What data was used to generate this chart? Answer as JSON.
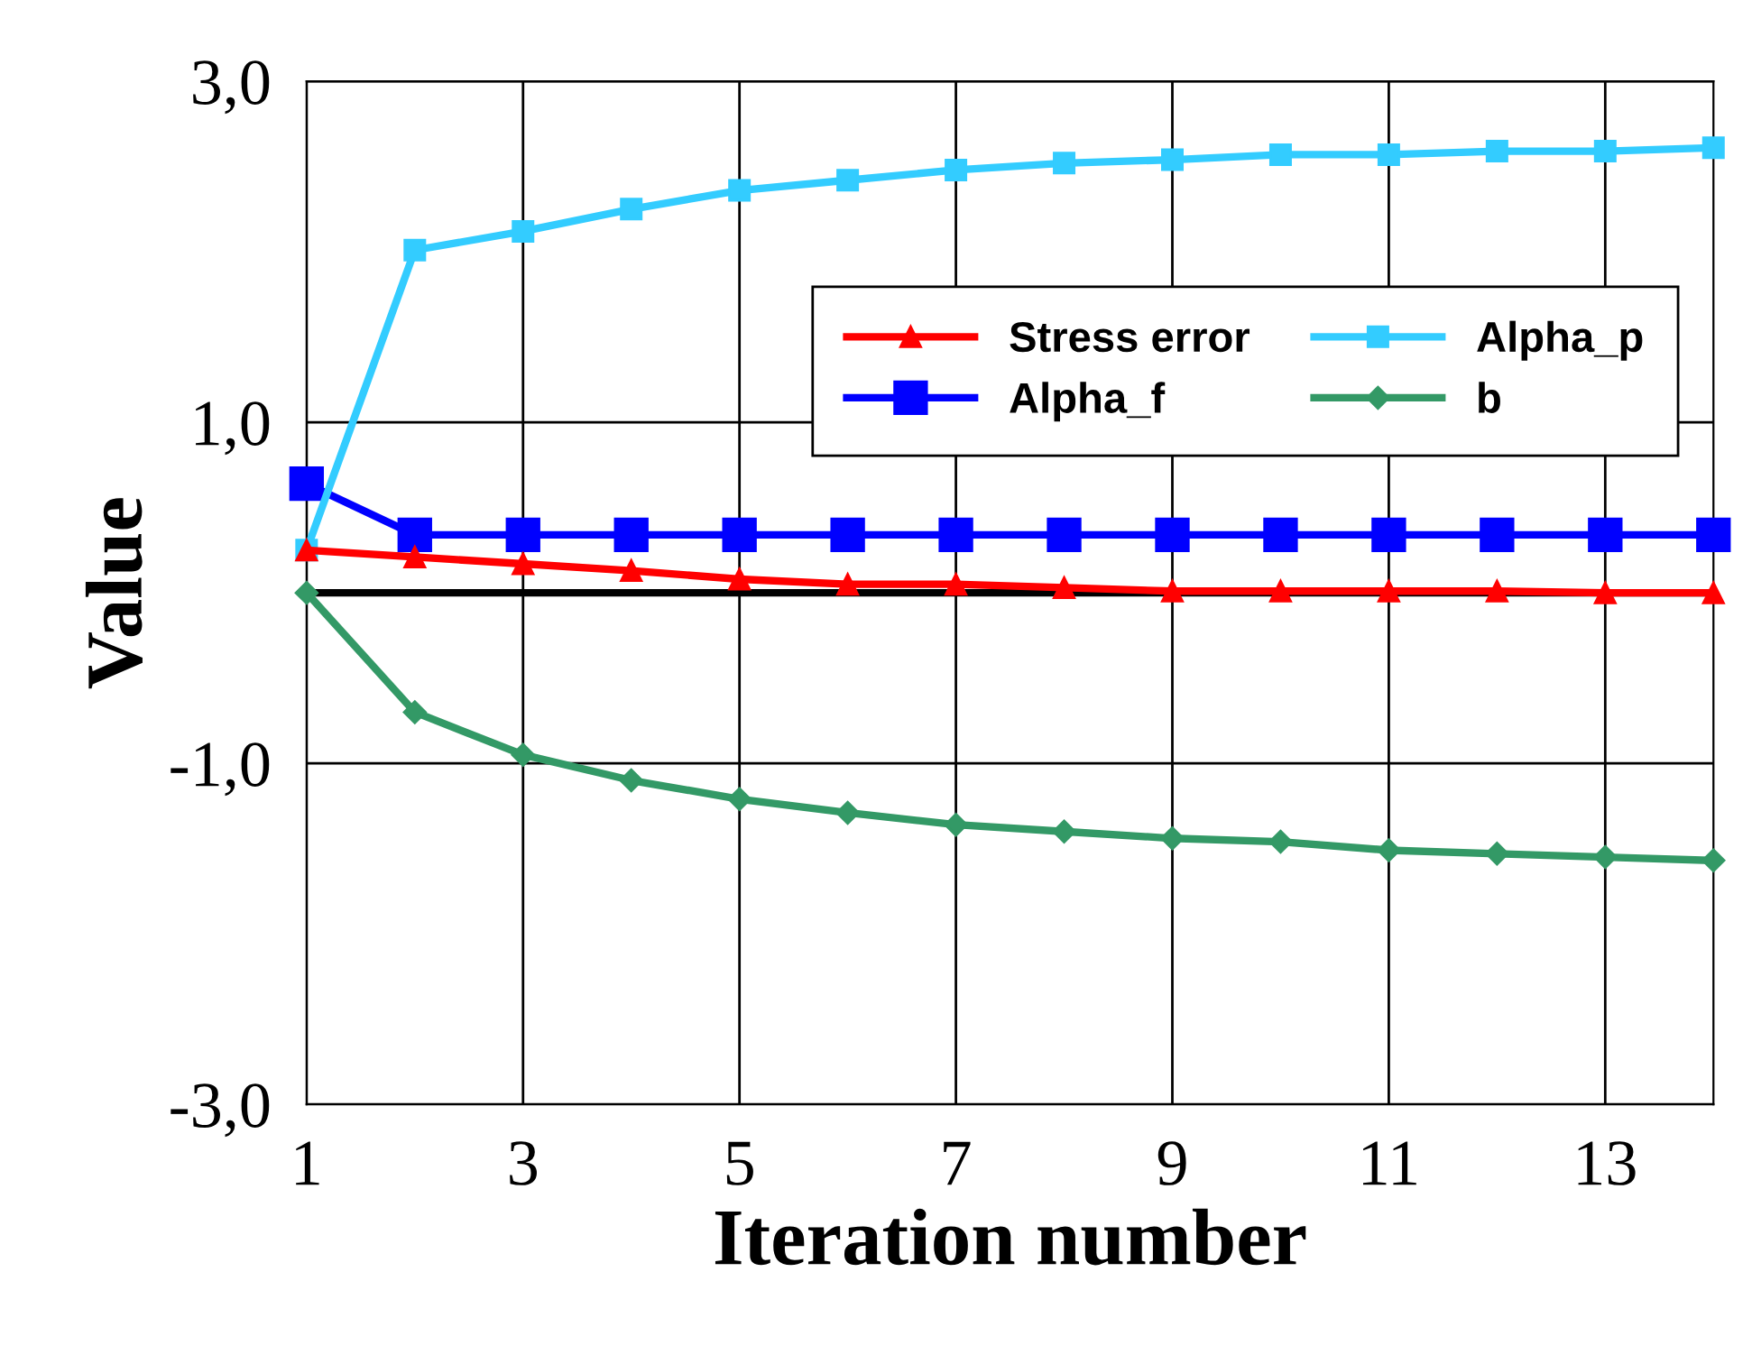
{
  "chart_data": {
    "type": "line",
    "xlabel": "Iteration number",
    "ylabel": "Value",
    "x": [
      1,
      2,
      3,
      4,
      5,
      6,
      7,
      8,
      9,
      10,
      11,
      12,
      13,
      14
    ],
    "xlim": [
      1,
      14
    ],
    "xticks": [
      1,
      3,
      5,
      7,
      9,
      11,
      13
    ],
    "ylim": [
      -3,
      3
    ],
    "yticks": [
      {
        "value": -3,
        "label": "-3,0"
      },
      {
        "value": -1,
        "label": "-1,0"
      },
      {
        "value": 1,
        "label": "1,0"
      },
      {
        "value": 3,
        "label": "3,0"
      }
    ],
    "grid": true,
    "legend": "top right",
    "line_style": "solid",
    "ref_lines": [
      {
        "axis": "y",
        "value": 0,
        "color": "#000000"
      }
    ],
    "series": [
      {
        "name": "Stress error",
        "color": "#ff0000",
        "marker": "triangle",
        "values": [
          0.25,
          0.21,
          0.17,
          0.13,
          0.08,
          0.05,
          0.05,
          0.03,
          0.01,
          0.01,
          0.01,
          0.01,
          0.0,
          0.0
        ]
      },
      {
        "name": "Alpha_p",
        "color": "#33ccff",
        "marker": "square",
        "values": [
          0.25,
          2.01,
          2.12,
          2.25,
          2.36,
          2.42,
          2.48,
          2.52,
          2.54,
          2.57,
          2.57,
          2.59,
          2.59,
          2.61
        ]
      },
      {
        "name": "Alpha_f",
        "color": "#0000ff",
        "marker": "square",
        "values": [
          0.64,
          0.34,
          0.34,
          0.34,
          0.34,
          0.34,
          0.34,
          0.34,
          0.34,
          0.34,
          0.34,
          0.34,
          0.34,
          0.34
        ]
      },
      {
        "name": "b",
        "color": "#339966",
        "marker": "diamond",
        "values": [
          0.0,
          -0.7,
          -0.95,
          -1.1,
          -1.21,
          -1.29,
          -1.36,
          -1.4,
          -1.44,
          -1.46,
          -1.51,
          -1.53,
          -1.55,
          -1.57
        ]
      }
    ]
  }
}
